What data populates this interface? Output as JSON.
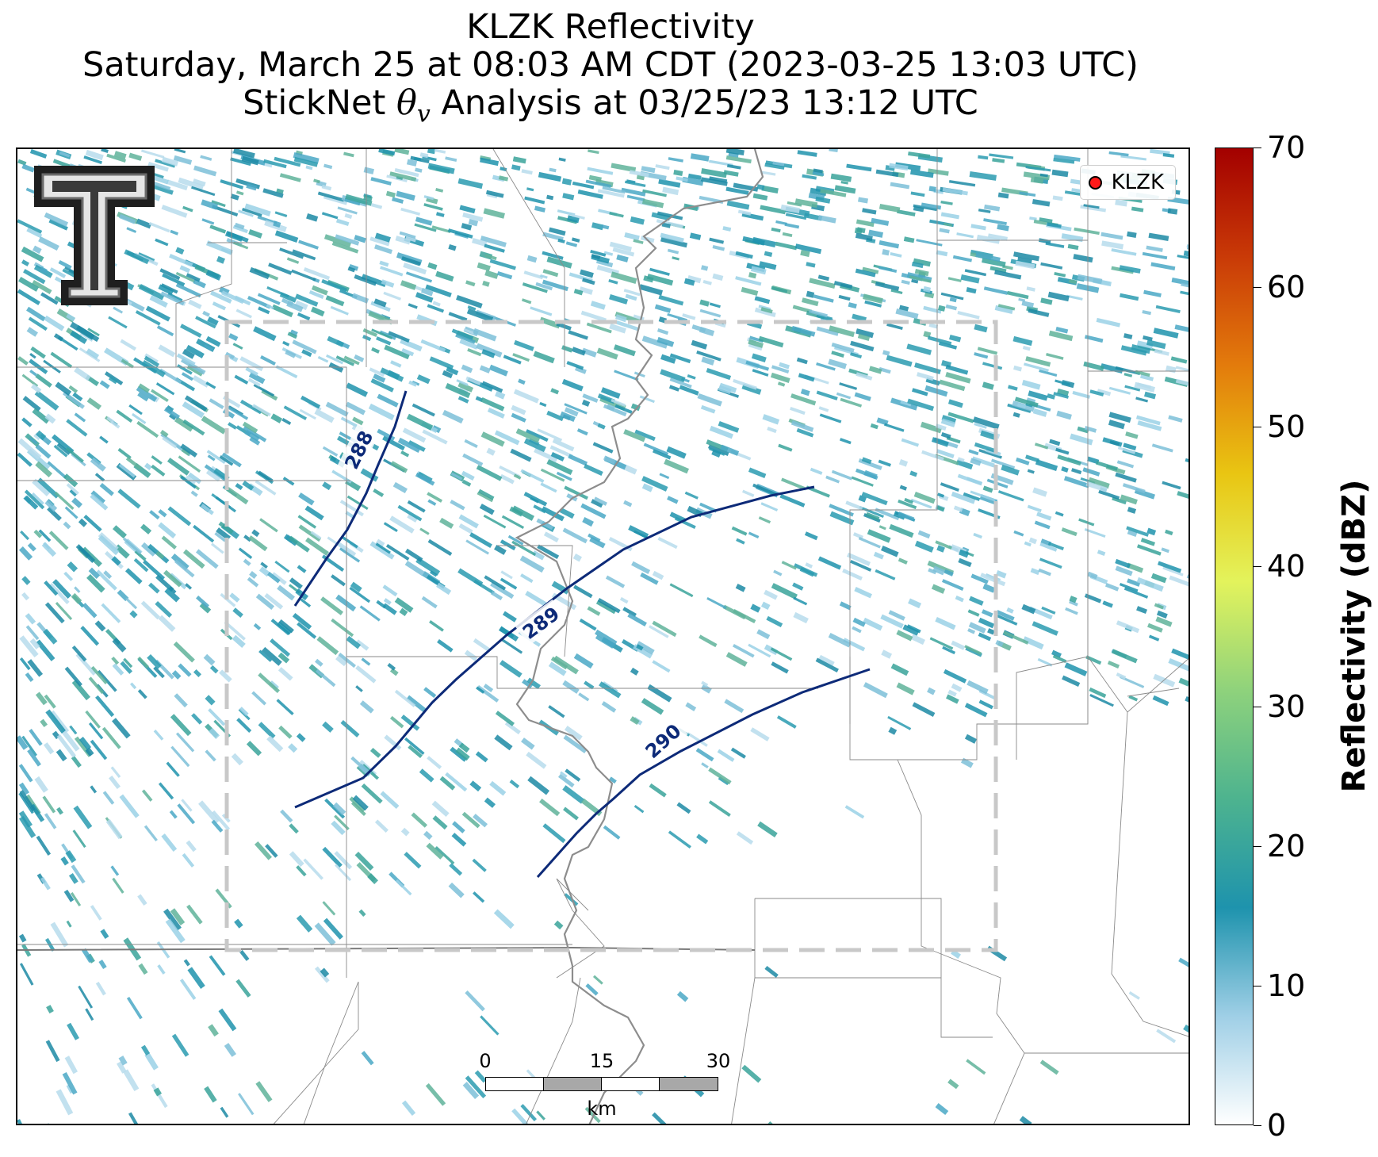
{
  "title": {
    "line1": "KLZK Reflectivity",
    "line2": "Saturday, March 25 at 08:03 AM CDT (2023-03-25 13:03 UTC)",
    "line3_prefix": "StickNet ",
    "line3_symbol": "θ",
    "line3_subscript": "v",
    "line3_suffix": " Analysis at 03/25/23 13:12 UTC"
  },
  "legend": {
    "label": "KLZK",
    "marker_color": "#ff1a1a"
  },
  "logo": {
    "icon": "texas-tech-double-t-logo"
  },
  "contours": [
    {
      "level": "288",
      "color": "#0d2a78"
    },
    {
      "level": "289",
      "color": "#0d2a78"
    },
    {
      "level": "290",
      "color": "#0d2a78"
    }
  ],
  "scalebar": {
    "ticks": [
      "0",
      "15",
      "30"
    ],
    "unit": "km"
  },
  "colorbar": {
    "label": "Reflectivity (dBZ)",
    "ticks": [
      "0",
      "10",
      "20",
      "30",
      "40",
      "50",
      "60",
      "70"
    ],
    "min": 0,
    "max": 70,
    "colors": [
      "#ffffff",
      "#9fcfe6",
      "#1e93ad",
      "#4db38f",
      "#8ed27c",
      "#e3f35c",
      "#e9c512",
      "#e37b0c",
      "#c93a07",
      "#a30000"
    ]
  },
  "analysis_box": {
    "style": "dashed",
    "color": "#c8c8c8"
  }
}
